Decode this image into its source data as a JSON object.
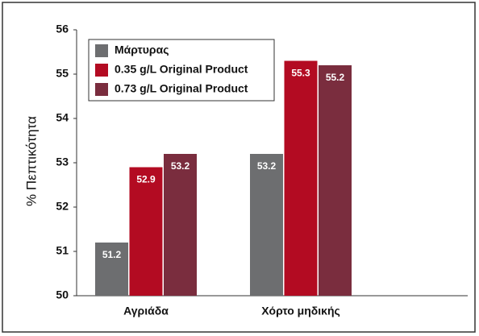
{
  "chart_data": {
    "type": "bar",
    "y_label": "% Πεπτικότητα",
    "categories": [
      "Αγριάδα",
      "Χόρτο μηδικής"
    ],
    "series": [
      {
        "name": "Μάρτυρας",
        "color": "#6d6e70",
        "values": [
          51.2,
          53.2
        ]
      },
      {
        "name": "0.35 g/L Original Product",
        "color": "#b30b22",
        "values": [
          52.9,
          55.3
        ]
      },
      {
        "name": "0.73 g/L Original Product",
        "color": "#7a2d3e",
        "values": [
          53.2,
          55.2
        ]
      }
    ],
    "ylim": [
      50,
      56
    ],
    "yticks": [
      50,
      51,
      52,
      53,
      54,
      55,
      56
    ],
    "legend": "upper left"
  }
}
